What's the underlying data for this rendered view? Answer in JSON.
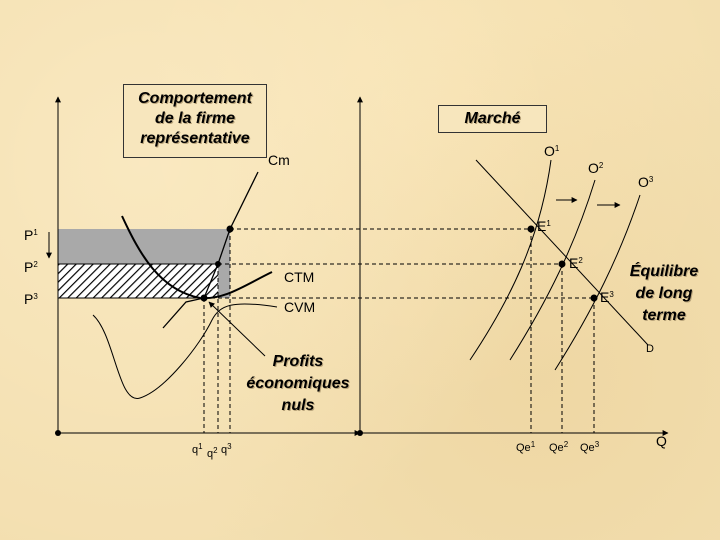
{
  "left_panel": {
    "title_lines": [
      "Comportement",
      "de la firme",
      "représentative"
    ],
    "curve_labels": {
      "cm": "Cm",
      "ctm": "CTM",
      "cvm": "CVM"
    },
    "price_labels": [
      {
        "base": "P",
        "sup": "1"
      },
      {
        "base": "P",
        "sup": "2"
      },
      {
        "base": "P",
        "sup": "3"
      }
    ],
    "quantity_labels": [
      {
        "base": "q",
        "sup": "1"
      },
      {
        "base": "q",
        "sup": "2"
      },
      {
        "base": "q",
        "sup": "3"
      }
    ],
    "note_lines": [
      "Profits",
      "économiques",
      "nuls"
    ]
  },
  "right_panel": {
    "title": "Marché",
    "supply_labels": [
      {
        "base": "O",
        "sup": "1"
      },
      {
        "base": "O",
        "sup": "2"
      },
      {
        "base": "O",
        "sup": "3"
      }
    ],
    "equilibrium_labels": [
      {
        "base": "E",
        "sup": "1"
      },
      {
        "base": "E",
        "sup": "2"
      },
      {
        "base": "E",
        "sup": "3"
      }
    ],
    "demand_label": "D",
    "quantity_labels": [
      {
        "base": "Qe",
        "sup": "1"
      },
      {
        "base": "Qe",
        "sup": "2"
      },
      {
        "base": "Qe",
        "sup": "3"
      }
    ],
    "axis_label": "Q",
    "note_lines": [
      "Équilibre",
      "de long",
      "terme"
    ]
  },
  "colors": {
    "background": "#f3dfb0",
    "profit_area": "#a9a9a9",
    "line": "#000000"
  }
}
